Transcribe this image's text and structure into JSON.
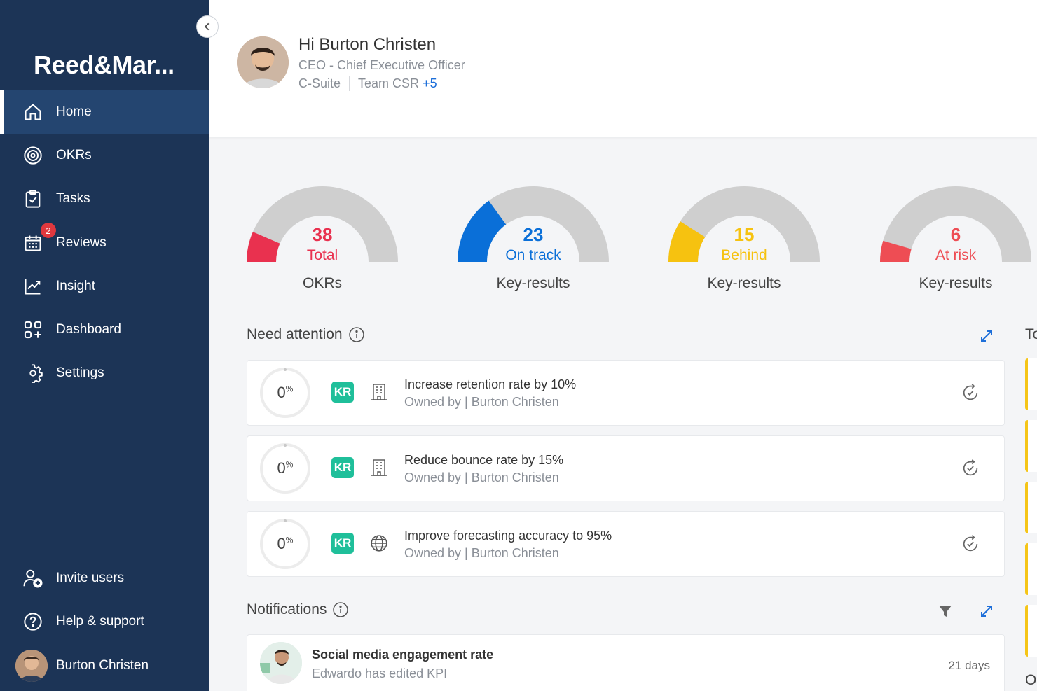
{
  "app": {
    "brand": "Reed&Mar..."
  },
  "sidebar": {
    "items": [
      {
        "label": "Home",
        "icon": "home-icon",
        "active": true
      },
      {
        "label": "OKRs",
        "icon": "target-icon"
      },
      {
        "label": "Tasks",
        "icon": "clipboard-check-icon"
      },
      {
        "label": "Reviews",
        "icon": "calendar-icon",
        "badge": "2"
      },
      {
        "label": "Insight",
        "icon": "chart-line-icon"
      },
      {
        "label": "Dashboard",
        "icon": "dashboard-grid-icon"
      },
      {
        "label": "Settings",
        "icon": "gear-icon"
      }
    ],
    "bottom": [
      {
        "label": "Invite users",
        "icon": "add-user-icon"
      },
      {
        "label": "Help & support",
        "icon": "help-icon"
      }
    ],
    "user": {
      "name": "Burton Christen"
    }
  },
  "header": {
    "greeting": "Hi Burton Christen",
    "role": "CEO - Chief Executive Officer",
    "team1": "C-Suite",
    "team2": "Team CSR",
    "more": "+5"
  },
  "colors": {
    "total": "#e9314f",
    "ontrack": "#0a6fd8",
    "behind": "#f6c210",
    "atrisk": "#ee4d54",
    "track": "#cfcfcf"
  },
  "gauges": [
    {
      "value": "38",
      "label": "Total",
      "caption": "OKRs",
      "fraction": 0.13,
      "color": "#e9314f"
    },
    {
      "value": "23",
      "label": "On track",
      "caption": "Key-results",
      "fraction": 0.3,
      "color": "#0a6fd8"
    },
    {
      "value": "15",
      "label": "Behind",
      "caption": "Key-results",
      "fraction": 0.18,
      "color": "#f6c210"
    },
    {
      "value": "6",
      "label": "At risk",
      "caption": "Key-results",
      "fraction": 0.09,
      "color": "#ee4d54"
    }
  ],
  "attention": {
    "title": "Need attention",
    "items": [
      {
        "progress": "0",
        "unit": "%",
        "tag": "KR",
        "type_icon": "building-icon",
        "title": "Increase retention rate by 10%",
        "owner": "Owned by | Burton Christen"
      },
      {
        "progress": "0",
        "unit": "%",
        "tag": "KR",
        "type_icon": "building-icon",
        "title": "Reduce bounce rate by 15%",
        "owner": "Owned by | Burton Christen"
      },
      {
        "progress": "0",
        "unit": "%",
        "tag": "KR",
        "type_icon": "globe-icon",
        "title": "Improve forecasting accuracy to 95%",
        "owner": "Owned by | Burton Christen"
      }
    ]
  },
  "notifications": {
    "title": "Notifications",
    "items": [
      {
        "title": "Social media engagement rate",
        "desc": "Edwardo has edited KPI",
        "time": "21 days"
      }
    ]
  },
  "right_column": {
    "title_fragment": "To",
    "bottom_fragment": "O"
  }
}
